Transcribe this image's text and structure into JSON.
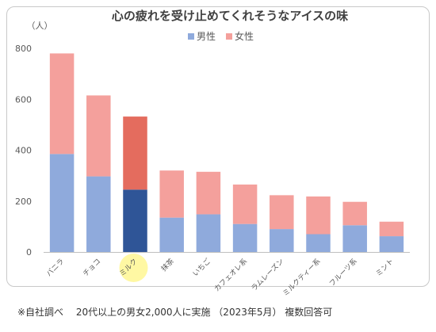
{
  "chart_data": {
    "type": "bar",
    "stacked": true,
    "title": "心の疲れを受け止めてくれそうなアイスの味",
    "ylabel": "（人）",
    "xlabel": "",
    "ylim": [
      0,
      800
    ],
    "yticks": [
      0,
      200,
      400,
      600,
      800
    ],
    "grid": false,
    "legend_position": "top",
    "categories": [
      "バニラ",
      "チョコ",
      "ミルク",
      "抹茶",
      "いちご",
      "カフェオレ系",
      "ラムレーズン",
      "ミルクティー系",
      "フルーツ系",
      "ミント"
    ],
    "series": [
      {
        "name": "男性",
        "color": "#8faadc",
        "values": [
          385,
          297,
          245,
          135,
          148,
          110,
          90,
          70,
          105,
          62
        ]
      },
      {
        "name": "女性",
        "color": "#f4a09c",
        "values": [
          395,
          318,
          287,
          185,
          167,
          155,
          133,
          148,
          92,
          57
        ]
      }
    ],
    "highlight": {
      "category": "ミルク",
      "colors": {
        "男性": "#2f5597",
        "女性": "#e46c5e"
      },
      "marker_color": "#fff799"
    }
  },
  "footnote": "※自社調べ　 20代以上の男女2,000人に実施 （2023年5月） 複数回答可"
}
